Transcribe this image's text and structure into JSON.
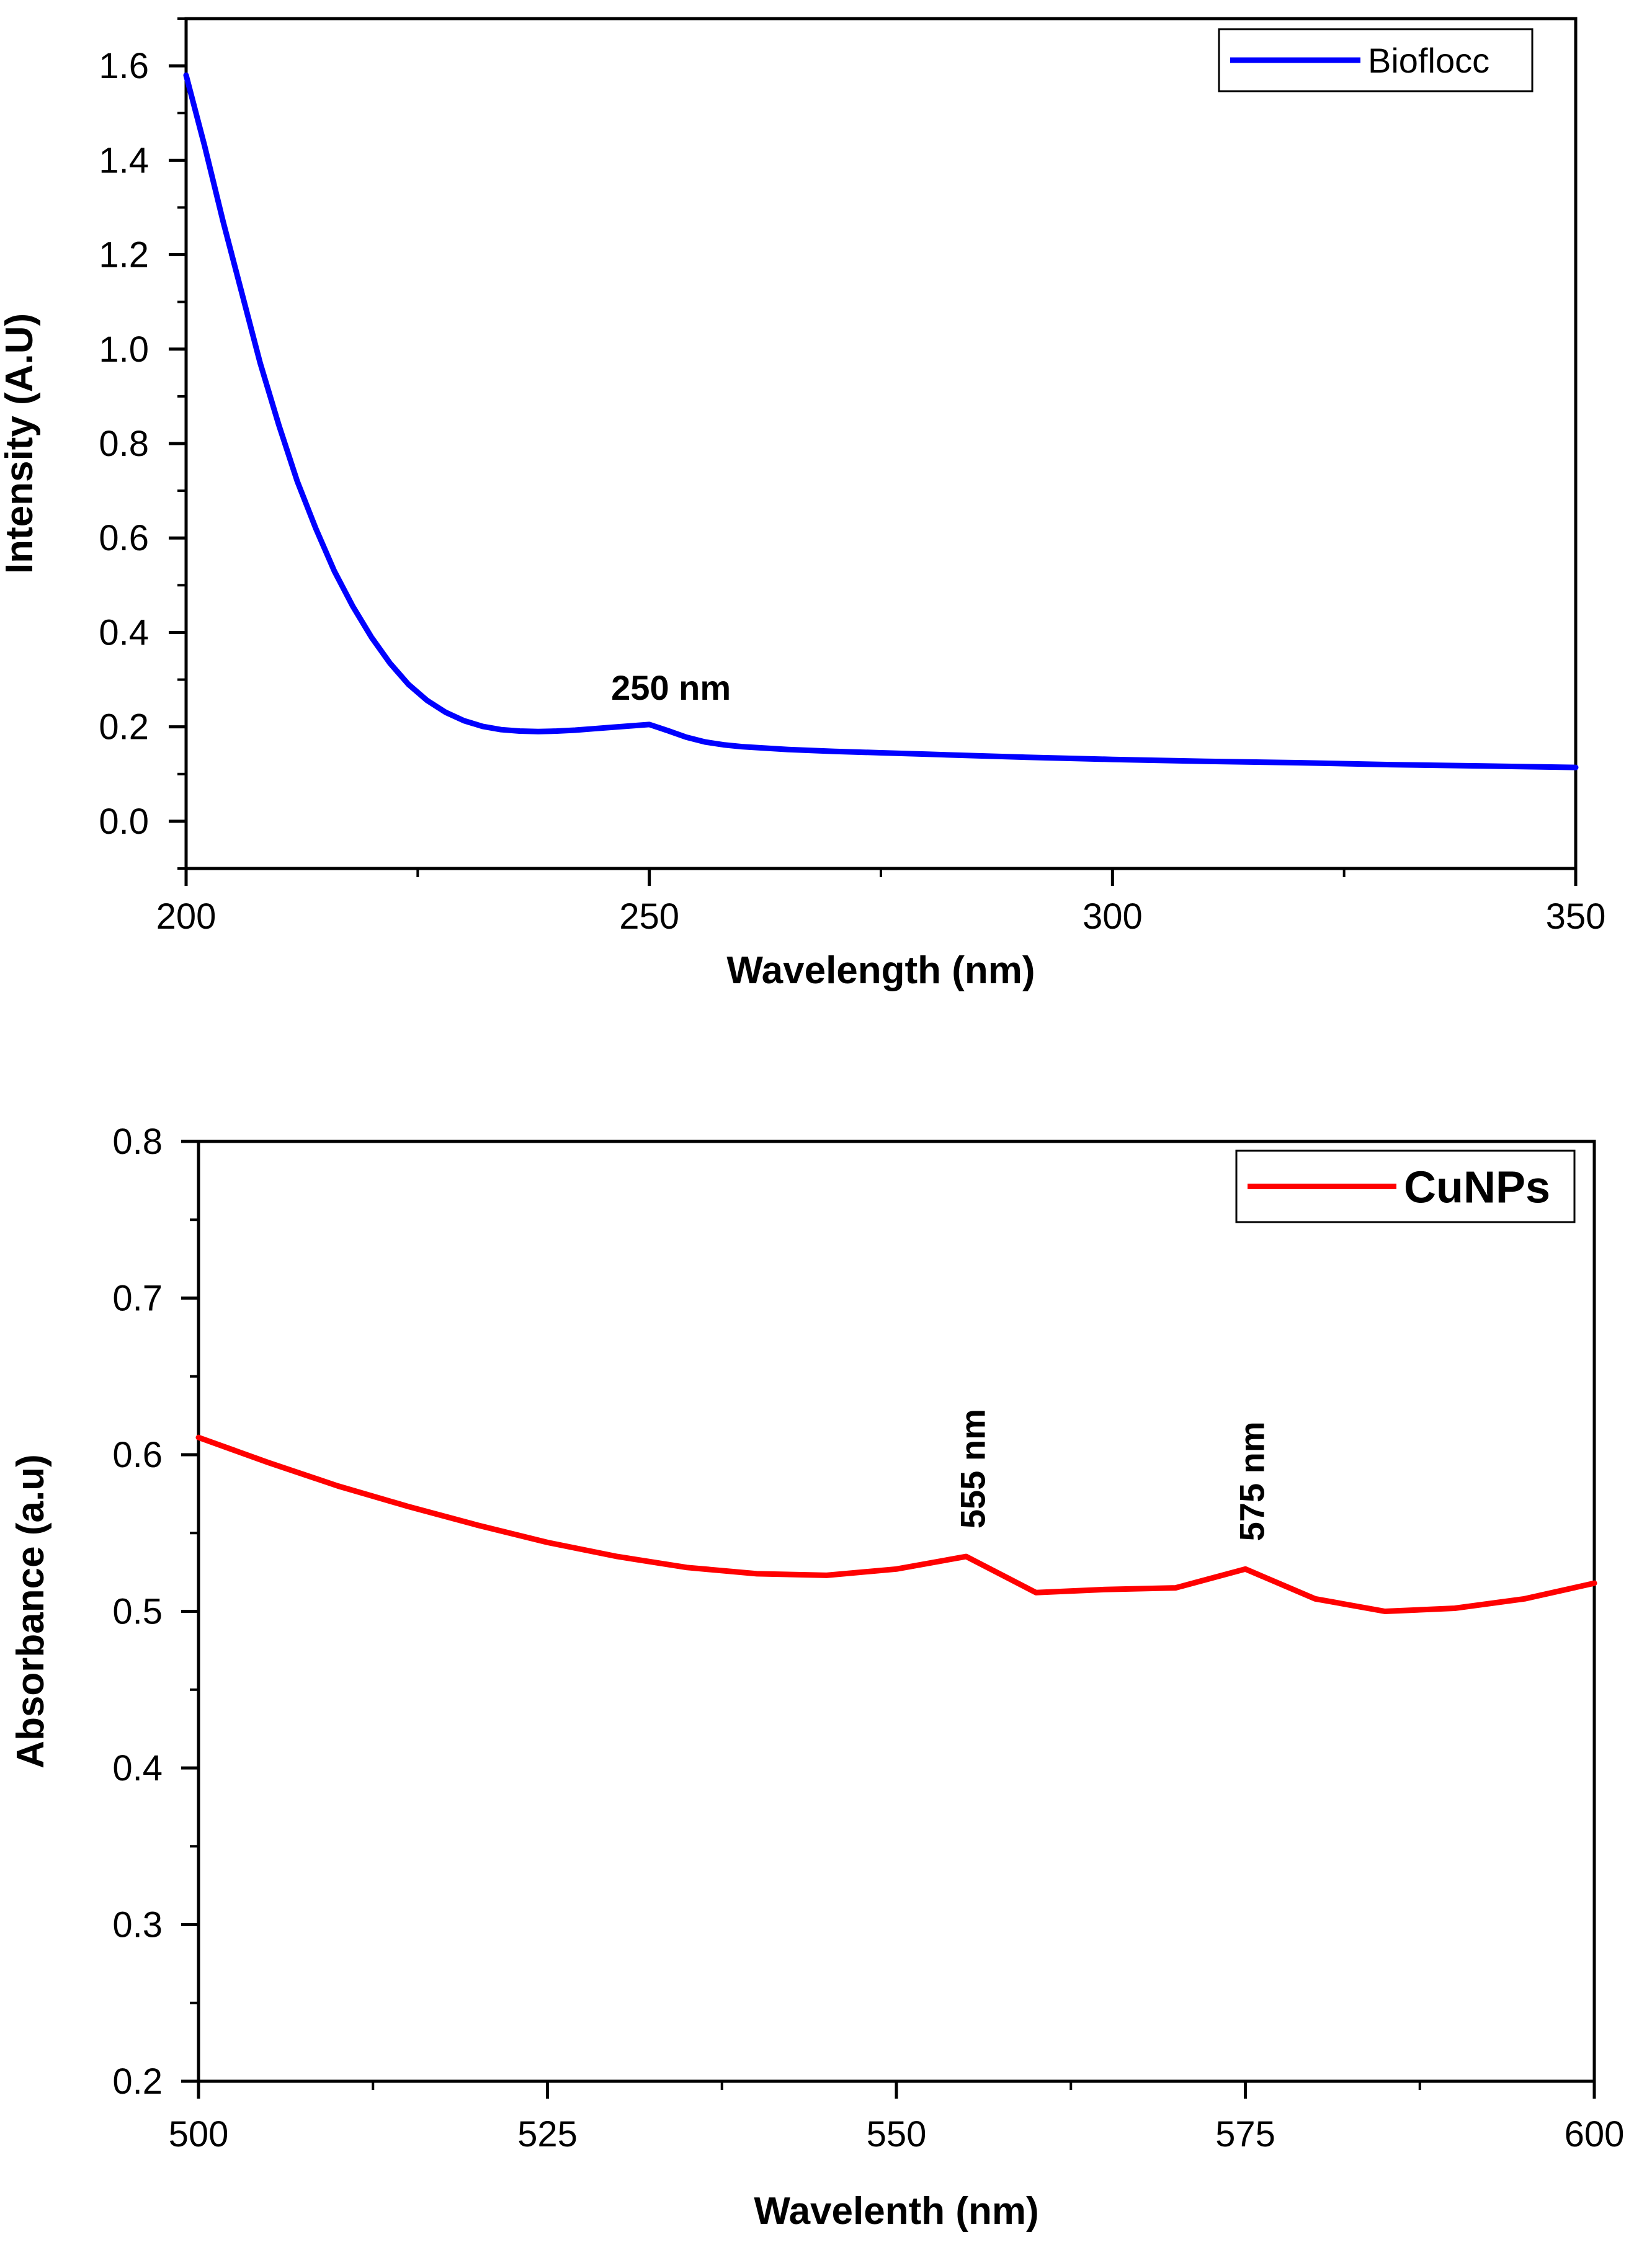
{
  "chart_data": [
    {
      "type": "line",
      "xlabel": "Wavelength (nm)",
      "ylabel": "Intensity (A.U)",
      "xlim": [
        200,
        350
      ],
      "ylim": [
        -0.1,
        1.7
      ],
      "x_ticks": [
        200,
        250,
        300,
        350
      ],
      "y_ticks": [
        0.0,
        0.2,
        0.4,
        0.6,
        0.8,
        1.0,
        1.2,
        1.4,
        1.6
      ],
      "x_tick_labels": [
        "200",
        "250",
        "300",
        "350"
      ],
      "y_tick_labels": [
        "0.0",
        "0.2",
        "0.4",
        "0.6",
        "0.8",
        "1.0",
        "1.2",
        "1.4",
        "1.6"
      ],
      "x_minor_step": 25,
      "y_minor_step": 0.1,
      "legend": "top-right",
      "series": [
        {
          "name": "Bioflocc",
          "color": "#0000ff",
          "x": [
            200,
            202,
            204,
            206,
            208,
            210,
            212,
            214,
            216,
            218,
            220,
            222,
            224,
            226,
            228,
            230,
            232,
            234,
            236,
            238,
            240,
            242,
            244,
            246,
            248,
            250,
            252,
            254,
            256,
            258,
            260,
            265,
            270,
            275,
            280,
            290,
            300,
            310,
            320,
            330,
            340,
            350
          ],
          "y": [
            1.58,
            1.43,
            1.27,
            1.12,
            0.97,
            0.84,
            0.72,
            0.62,
            0.53,
            0.455,
            0.39,
            0.335,
            0.29,
            0.256,
            0.231,
            0.213,
            0.201,
            0.194,
            0.191,
            0.19,
            0.191,
            0.193,
            0.196,
            0.199,
            0.202,
            0.205,
            0.192,
            0.178,
            0.168,
            0.162,
            0.158,
            0.152,
            0.148,
            0.145,
            0.142,
            0.136,
            0.131,
            0.127,
            0.124,
            0.12,
            0.117,
            0.114
          ]
        }
      ],
      "annotations": [
        {
          "text": "250 nm",
          "x": 250,
          "y": 0.205
        }
      ]
    },
    {
      "type": "line",
      "xlabel": "Wavelenth (nm)",
      "ylabel": "Absorbance (a.u)",
      "xlim": [
        500,
        600
      ],
      "ylim": [
        0.2,
        0.8
      ],
      "x_ticks": [
        500,
        525,
        550,
        575,
        600
      ],
      "y_ticks": [
        0.2,
        0.3,
        0.4,
        0.5,
        0.6,
        0.7,
        0.8
      ],
      "x_tick_labels": [
        "500",
        "525",
        "550",
        "575",
        "600"
      ],
      "y_tick_labels": [
        "0.2",
        "0.3",
        "0.4",
        "0.5",
        "0.6",
        "0.7",
        "0.8"
      ],
      "x_minor_step": 12.5,
      "y_minor_step": 0.05,
      "legend": "top-right",
      "series": [
        {
          "name": "CuNPs",
          "color": "#ff0000",
          "x": [
            500,
            505,
            510,
            515,
            520,
            525,
            530,
            535,
            540,
            545,
            550,
            555,
            560,
            565,
            570,
            575,
            580,
            585,
            590,
            595,
            600
          ],
          "y": [
            0.611,
            0.595,
            0.58,
            0.567,
            0.555,
            0.544,
            0.535,
            0.528,
            0.524,
            0.523,
            0.527,
            0.535,
            0.512,
            0.514,
            0.515,
            0.527,
            0.508,
            0.5,
            0.502,
            0.508,
            0.518
          ]
        }
      ],
      "annotations": [
        {
          "text": "555 nm",
          "x": 555,
          "y": 0.535
        },
        {
          "text": "575 nm",
          "x": 575,
          "y": 0.527
        }
      ]
    }
  ]
}
